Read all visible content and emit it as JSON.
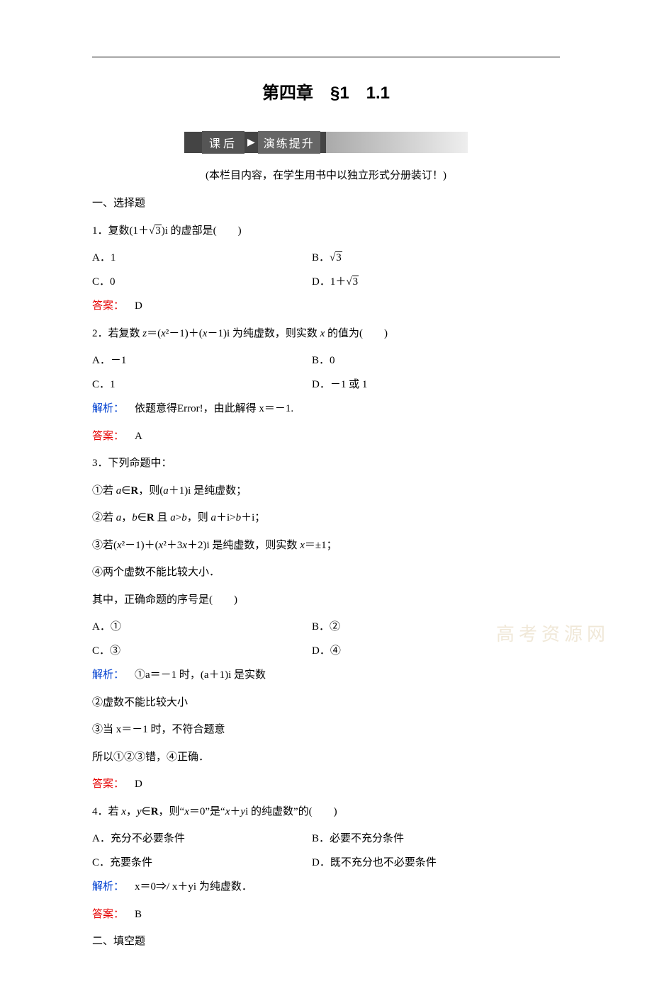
{
  "chapter_title": "第四章 §1 1.1",
  "banner": {
    "left": "课后",
    "right": "演练提升"
  },
  "note": "(本栏目内容，在学生用书中以独立形式分册装订！)",
  "section1": "一、选择题",
  "q1": {
    "stem_pre": "1．复数(1＋",
    "stem_rad": "3",
    "stem_post": ")i 的虚部是(  )",
    "A": "A．1",
    "B_pre": "B．",
    "B_rad": "3",
    "C": "C．0",
    "D_pre": "D．1＋",
    "D_rad": "3",
    "ans_label": "答案：",
    "ans": " D"
  },
  "q2": {
    "stem": "2．若复数 z＝(x²－1)＋(x－1)i 为纯虚数，则实数 x 的值为(  )",
    "A": "A．－1",
    "B": "B．0",
    "C": "C．1",
    "D": "D．－1 或 1",
    "expl_label": "解析：",
    "expl": " 依题意得Error!，由此解得 x＝－1.",
    "ans_label": "答案：",
    "ans": " A"
  },
  "q3": {
    "stem": "3．下列命题中：",
    "l1": "①若 a∈R，则(a＋1)i 是纯虚数；",
    "l2": "②若 a，b∈R 且 a>b，则 a＋i>b＋i；",
    "l3": "③若(x²－1)＋(x²＋3x＋2)i 是纯虚数，则实数 x＝±1；",
    "l4": "④两个虚数不能比较大小．",
    "l5": "其中，正确命题的序号是(  )",
    "A": "A．①",
    "B": "B．②",
    "C": "C．③",
    "D": "D．④",
    "expl_label": "解析：",
    "e1": " ①a＝－1 时，(a＋1)i 是实数",
    "e2": "②虚数不能比较大小",
    "e3": "③当 x＝－1 时，不符合题意",
    "e4": "所以①②③错，④正确．",
    "ans_label": "答案：",
    "ans": " D"
  },
  "q4": {
    "stem": "4．若 x，y∈R，则“x＝0”是“x＋yi 的纯虚数”的(  )",
    "A": "A．充分不必要条件",
    "B": "B．必要不充分条件",
    "C": "C．充要条件",
    "D": "D．既不充分也不必要条件",
    "expl_label": "解析：",
    "expl": " x＝0⇒/ x＋yi 为纯虚数．",
    "ans_label": "答案：",
    "ans": " B"
  },
  "section2": "二、填空题",
  "watermark": "高考资源网",
  "colors": {
    "red": "#e60000",
    "blue": "#0040d0",
    "text": "#000000",
    "background": "#ffffff"
  },
  "typography": {
    "body_font": "SimSun",
    "body_size_pt": 11,
    "title_font": "SimHei",
    "title_size_pt": 18,
    "title_weight": "bold"
  }
}
